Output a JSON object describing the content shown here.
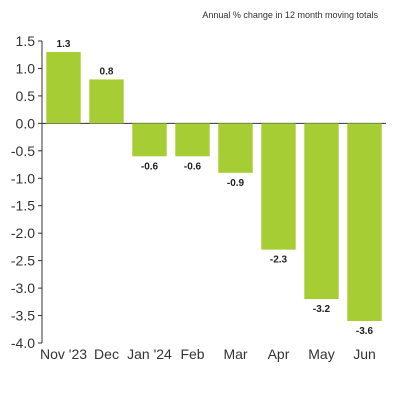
{
  "chart_data": {
    "type": "bar",
    "title": "Annual % change in 12 month moving totals",
    "xlabel": "",
    "ylabel": "",
    "categories": [
      "Nov '23",
      "Dec",
      "Jan '24",
      "Feb",
      "Mar",
      "Apr",
      "May",
      "Jun"
    ],
    "values": [
      1.3,
      0.8,
      -0.6,
      -0.6,
      -0.9,
      -2.3,
      -3.2,
      -3.6
    ],
    "value_labels": [
      "1.3",
      "0.8",
      "-0.6",
      "-0.6",
      "-0.9",
      "-2.3",
      "-3.2",
      "-3.6"
    ],
    "ylim": [
      -4.0,
      1.5
    ],
    "yticks": [
      1.5,
      1.0,
      0.5,
      0.0,
      -0.5,
      -1.0,
      -1.5,
      -2.0,
      -2.5,
      -3.0,
      -3.5,
      -4.0
    ],
    "ytick_labels": [
      "1.5",
      "1.0",
      "0.5",
      "0.0",
      "-0.5",
      "-1.0",
      "-1.5",
      "-2.0",
      "-2.5",
      "-3.0",
      "-3.5",
      "-4.0"
    ],
    "grid": false,
    "legend": "none",
    "bar_color": "#a7cd34"
  }
}
